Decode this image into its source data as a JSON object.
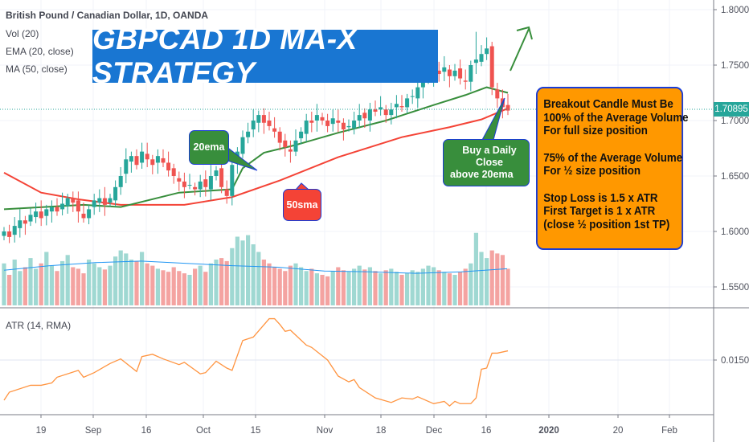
{
  "header": {
    "symbol": "British Pound / Canadian Dollar, 1D, OANDA",
    "indicators": [
      "Vol (20)",
      "EMA (20, close)",
      "MA (50, close)"
    ]
  },
  "title_banner": "GBPCAD 1D MA-X STRATEGY",
  "notes": {
    "lines1": [
      "Breakout Candle Must Be",
      "100% of the Average Volume",
      "For full size position"
    ],
    "lines2": [
      "75% of the Average Volume",
      "For ½ size position"
    ],
    "lines3": [
      "Stop Loss is 1.5 x ATR",
      "First Target is 1 x ATR",
      "(close ½ position 1st TP)"
    ]
  },
  "callouts": {
    "ema": "20ema",
    "sma": "50sma",
    "buy": [
      "Buy a Daily Close",
      "above 20ema"
    ]
  },
  "colors": {
    "up": "#26a69a",
    "down": "#ef5350",
    "ema": "#388e3c",
    "sma": "#f44336",
    "atr": "#ff9440",
    "volma": "#2196f3",
    "banner": "#1976d2",
    "note": "#ff9800"
  },
  "chart_data": {
    "type": "candlestick",
    "price_axis": {
      "ticks": [
        "1.80000",
        "1.75000",
        "1.70000",
        "1.65000",
        "1.60000",
        "1.55000"
      ],
      "current": "1.70895"
    },
    "time_axis": {
      "ticks": [
        "19",
        "Sep",
        "16",
        "Oct",
        "15",
        "Nov",
        "18",
        "Dec",
        "16",
        "2020",
        "20",
        "Feb"
      ]
    },
    "closes": [
      1.6,
      1.595,
      1.605,
      1.61,
      1.607,
      1.615,
      1.618,
      1.612,
      1.62,
      1.622,
      1.618,
      1.625,
      1.63,
      1.626,
      1.618,
      1.612,
      1.62,
      1.628,
      1.63,
      1.624,
      1.63,
      1.64,
      1.65,
      1.665,
      1.668,
      1.66,
      1.672,
      1.665,
      1.66,
      1.668,
      1.662,
      1.655,
      1.65,
      1.645,
      1.64,
      1.642,
      1.638,
      1.645,
      1.64,
      1.65,
      1.655,
      1.64,
      1.632,
      1.66,
      1.672,
      1.685,
      1.69,
      1.7,
      1.705,
      1.698,
      1.695,
      1.69,
      1.68,
      1.676,
      1.672,
      1.682,
      1.69,
      1.7,
      1.698,
      1.705,
      1.7,
      1.695,
      1.702,
      1.698,
      1.692,
      1.695,
      1.7,
      1.705,
      1.702,
      1.71,
      1.708,
      1.712,
      1.705,
      1.71,
      1.715,
      1.712,
      1.72,
      1.722,
      1.73,
      1.735,
      1.738,
      1.745,
      1.742,
      1.748,
      1.74,
      1.745,
      1.738,
      1.735,
      1.75,
      1.755,
      1.76,
      1.765,
      1.73,
      1.72,
      1.712,
      1.709
    ],
    "volumes": [
      55,
      40,
      60,
      45,
      50,
      62,
      48,
      55,
      70,
      52,
      45,
      58,
      66,
      50,
      48,
      42,
      60,
      55,
      50,
      47,
      52,
      64,
      72,
      68,
      60,
      58,
      70,
      55,
      52,
      48,
      46,
      44,
      50,
      45,
      42,
      40,
      48,
      52,
      44,
      55,
      60,
      62,
      58,
      75,
      90,
      85,
      92,
      80,
      70,
      60,
      55,
      50,
      48,
      45,
      52,
      55,
      50,
      45,
      48,
      42,
      40,
      38,
      45,
      50,
      46,
      44,
      48,
      52,
      47,
      50,
      45,
      42,
      46,
      48,
      44,
      40,
      42,
      46,
      44,
      48,
      52,
      50,
      46,
      44,
      42,
      40,
      44,
      48,
      55,
      95,
      70,
      62,
      72,
      68,
      66,
      48
    ],
    "vol_ma_level": [
      46,
      52,
      56,
      58,
      55,
      52,
      50,
      45,
      44,
      42,
      44,
      48
    ],
    "ema20": [
      [
        0,
        1.62
      ],
      [
        15,
        1.624
      ],
      [
        22,
        1.622
      ],
      [
        33,
        1.635
      ],
      [
        43,
        1.638
      ],
      [
        45,
        1.657
      ],
      [
        49,
        1.671
      ],
      [
        55,
        1.678
      ],
      [
        63,
        1.689
      ],
      [
        72,
        1.7
      ],
      [
        81,
        1.714
      ],
      [
        87,
        1.723
      ],
      [
        91,
        1.73
      ],
      [
        95,
        1.725
      ]
    ],
    "ma50": [
      [
        0,
        1.653
      ],
      [
        7,
        1.635
      ],
      [
        14,
        1.629
      ],
      [
        22,
        1.624
      ],
      [
        34,
        1.624
      ],
      [
        43,
        1.631
      ],
      [
        52,
        1.646
      ],
      [
        63,
        1.667
      ],
      [
        75,
        1.685
      ],
      [
        84,
        1.694
      ],
      [
        90,
        1.701
      ],
      [
        95,
        1.711
      ]
    ],
    "atr": {
      "label": "ATR (14, RMA)",
      "tick": "0.01500",
      "points": [
        [
          0,
          0.0115
        ],
        [
          1,
          0.0122
        ],
        [
          5,
          0.0128
        ],
        [
          7,
          0.0128
        ],
        [
          9,
          0.013
        ],
        [
          10,
          0.0135
        ],
        [
          14,
          0.0141
        ],
        [
          15,
          0.0135
        ],
        [
          17,
          0.0139
        ],
        [
          20,
          0.0147
        ],
        [
          22,
          0.0151
        ],
        [
          25,
          0.014
        ],
        [
          26,
          0.0153
        ],
        [
          28,
          0.0155
        ],
        [
          30,
          0.0151
        ],
        [
          33,
          0.0146
        ],
        [
          34,
          0.0148
        ],
        [
          37,
          0.0138
        ],
        [
          38,
          0.0139
        ],
        [
          40,
          0.0149
        ],
        [
          42,
          0.0143
        ],
        [
          43,
          0.0141
        ],
        [
          45,
          0.0167
        ],
        [
          47,
          0.017
        ],
        [
          50,
          0.0186
        ],
        [
          51,
          0.0186
        ],
        [
          52,
          0.0181
        ],
        [
          53,
          0.0175
        ],
        [
          54,
          0.0176
        ],
        [
          57,
          0.0163
        ],
        [
          58,
          0.0161
        ],
        [
          61,
          0.015
        ],
        [
          63,
          0.0136
        ],
        [
          65,
          0.0131
        ],
        [
          66,
          0.0133
        ],
        [
          67,
          0.0126
        ],
        [
          70,
          0.0117
        ],
        [
          73,
          0.0113
        ],
        [
          75,
          0.0117
        ],
        [
          77,
          0.0116
        ],
        [
          78,
          0.0118
        ],
        [
          81,
          0.0112
        ],
        [
          83,
          0.0114
        ],
        [
          84,
          0.011
        ],
        [
          85,
          0.0114
        ],
        [
          86,
          0.0112
        ],
        [
          88,
          0.0112
        ],
        [
          89,
          0.0117
        ],
        [
          90,
          0.0142
        ],
        [
          91,
          0.0143
        ],
        [
          92,
          0.0156
        ],
        [
          93,
          0.0156
        ],
        [
          95,
          0.0158
        ]
      ]
    }
  }
}
